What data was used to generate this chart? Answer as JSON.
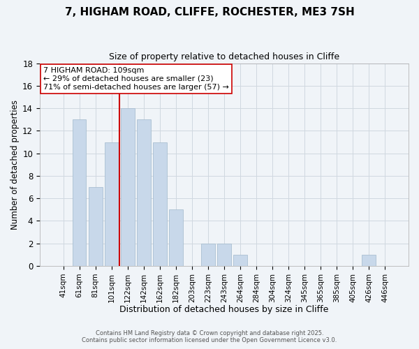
{
  "title_line1": "7, HIGHAM ROAD, CLIFFE, ROCHESTER, ME3 7SH",
  "title_line2": "Size of property relative to detached houses in Cliffe",
  "xlabel": "Distribution of detached houses by size in Cliffe",
  "ylabel": "Number of detached properties",
  "bar_labels": [
    "41sqm",
    "61sqm",
    "81sqm",
    "101sqm",
    "122sqm",
    "142sqm",
    "162sqm",
    "182sqm",
    "203sqm",
    "223sqm",
    "243sqm",
    "264sqm",
    "284sqm",
    "304sqm",
    "324sqm",
    "345sqm",
    "365sqm",
    "385sqm",
    "405sqm",
    "426sqm",
    "446sqm"
  ],
  "bar_values": [
    0,
    13,
    7,
    11,
    14,
    13,
    11,
    5,
    0,
    2,
    2,
    1,
    0,
    0,
    0,
    0,
    0,
    0,
    0,
    1,
    0
  ],
  "bar_color": "#c8d8ea",
  "bar_edge_color": "#a0b8cc",
  "grid_color": "#d0d8e0",
  "vline_x_idx": 3.5,
  "vline_color": "#cc0000",
  "annotation_text": "7 HIGHAM ROAD: 109sqm\n← 29% of detached houses are smaller (23)\n71% of semi-detached houses are larger (57) →",
  "annotation_box_color": "#ffffff",
  "annotation_box_edge": "#cc0000",
  "ylim": [
    0,
    18
  ],
  "yticks": [
    0,
    2,
    4,
    6,
    8,
    10,
    12,
    14,
    16,
    18
  ],
  "footer_line1": "Contains HM Land Registry data © Crown copyright and database right 2025.",
  "footer_line2": "Contains public sector information licensed under the Open Government Licence v3.0.",
  "background_color": "#f0f4f8"
}
